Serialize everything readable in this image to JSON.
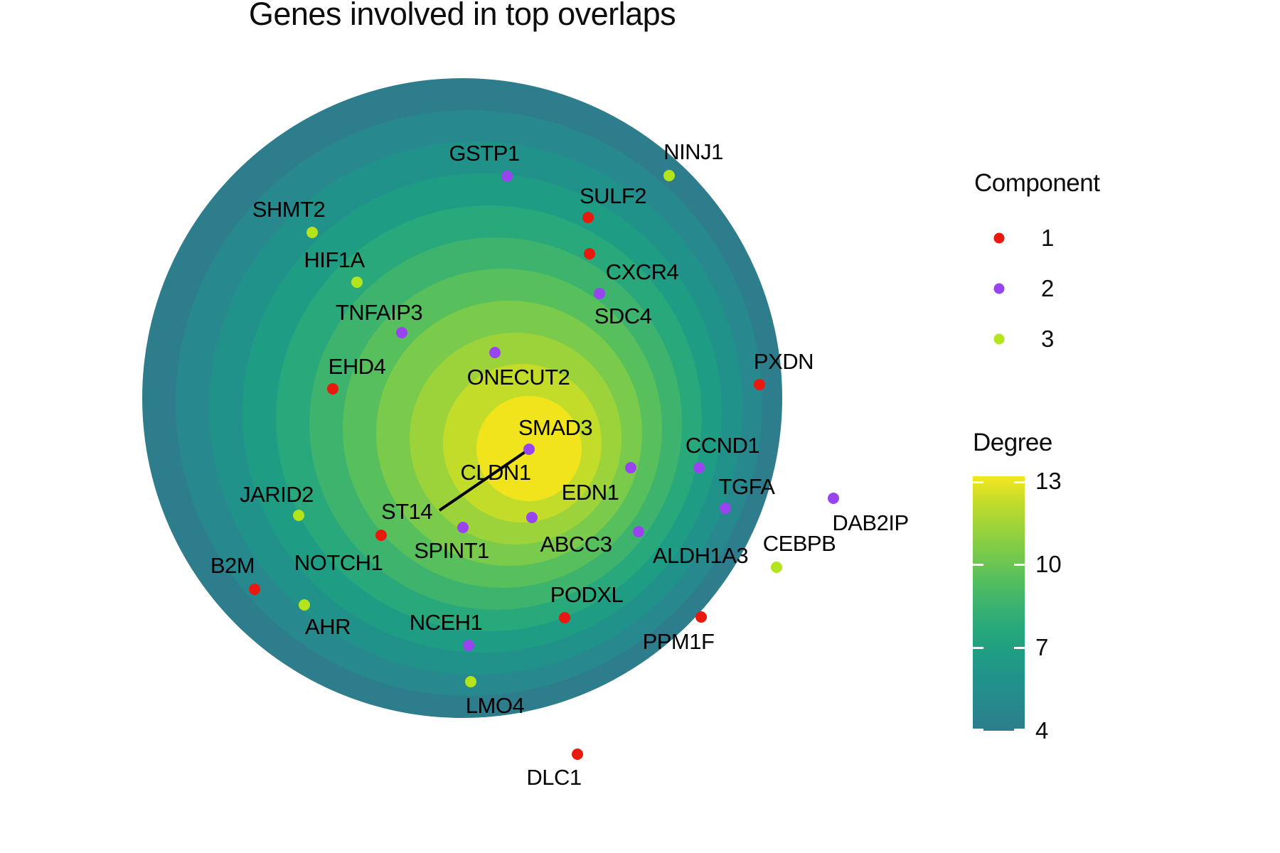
{
  "title": "Genes involved in top overlaps",
  "chart_data": {
    "type": "scatter",
    "subtype": "radial-degree-plot",
    "rings": {
      "count": 11,
      "outer_center": [
        650,
        560
      ],
      "inner_center": [
        744,
        631
      ],
      "outer_radius": 450,
      "inner_radius": 74,
      "colors_outer_to_inner": [
        "#2d7d8d",
        "#27888d",
        "#21928a",
        "#1f9d84",
        "#28a87b",
        "#3db36e",
        "#58bf5d",
        "#7aca4b",
        "#9dd33a",
        "#c3dc2a",
        "#f1e41d"
      ]
    },
    "component_colors": {
      "1": "#e8190f",
      "2": "#9845f0",
      "3": "#b4e41c"
    },
    "connector": {
      "from": [
        744,
        632
      ],
      "to": [
        618,
        718
      ],
      "color": "#000000",
      "width": 4
    },
    "genes": [
      {
        "name": "GSTP1",
        "component": 2,
        "dot": [
          713,
          248
        ],
        "label": [
          681,
          216
        ]
      },
      {
        "name": "NINJ1",
        "component": 3,
        "dot": [
          941,
          247
        ],
        "label": [
          975,
          214
        ]
      },
      {
        "name": "SULF2",
        "component": 1,
        "dot": [
          827,
          306
        ],
        "label": [
          862,
          276
        ]
      },
      {
        "name": "SHMT2",
        "component": 3,
        "dot": [
          439,
          327
        ],
        "label": [
          406,
          295
        ]
      },
      {
        "name": "HIF1A",
        "component": 3,
        "dot": [
          502,
          397
        ],
        "label": [
          470,
          366
        ]
      },
      {
        "name": "CXCR4",
        "component": 1,
        "dot": [
          829,
          357
        ],
        "label": [
          903,
          383
        ]
      },
      {
        "name": "SDC4",
        "component": 2,
        "dot": [
          843,
          413
        ],
        "label": [
          876,
          445
        ]
      },
      {
        "name": "TNFAIP3",
        "component": 2,
        "dot": [
          565,
          468
        ],
        "label": [
          533,
          440
        ]
      },
      {
        "name": "EHD4",
        "component": 1,
        "dot": [
          468,
          547
        ],
        "label": [
          502,
          516
        ]
      },
      {
        "name": "ONECUT2",
        "component": 2,
        "dot": [
          696,
          496
        ],
        "label": [
          729,
          531
        ]
      },
      {
        "name": "PXDN",
        "component": 1,
        "dot": [
          1068,
          541
        ],
        "label": [
          1102,
          509
        ]
      },
      {
        "name": "SMAD3",
        "component": 2,
        "dot": [
          744,
          632
        ],
        "label": [
          781,
          602
        ]
      },
      {
        "name": "CLDN1",
        "component": null,
        "dot": null,
        "label": [
          697,
          665
        ]
      },
      {
        "name": "CCND1",
        "component": 2,
        "dot": [
          983,
          658
        ],
        "label": [
          1016,
          627
        ]
      },
      {
        "name": "EDN1",
        "component": 2,
        "dot": [
          887,
          658
        ],
        "label": [
          830,
          693
        ]
      },
      {
        "name": "TGFA",
        "component": 2,
        "dot": [
          1020,
          715
        ],
        "label": [
          1050,
          685
        ]
      },
      {
        "name": "JARID2",
        "component": 3,
        "dot": [
          420,
          725
        ],
        "label": [
          389,
          696
        ]
      },
      {
        "name": "ST14",
        "component": null,
        "dot": null,
        "label": [
          572,
          720
        ]
      },
      {
        "name": "DAB2IP",
        "component": 2,
        "dot": [
          1172,
          701
        ],
        "label": [
          1224,
          736
        ]
      },
      {
        "name": "ABCC3",
        "component": 2,
        "dot": [
          748,
          728
        ],
        "label": [
          810,
          766
        ]
      },
      {
        "name": "SPINT1",
        "component": 2,
        "dot": [
          651,
          742
        ],
        "label": [
          635,
          775
        ]
      },
      {
        "name": "NOTCH1",
        "component": 1,
        "dot": [
          536,
          753
        ],
        "label": [
          476,
          792
        ]
      },
      {
        "name": "ALDH1A3",
        "component": 2,
        "dot": [
          898,
          748
        ],
        "label": [
          985,
          782
        ]
      },
      {
        "name": "CEBPB",
        "component": 3,
        "dot": [
          1092,
          798
        ],
        "label": [
          1124,
          765
        ]
      },
      {
        "name": "B2M",
        "component": 1,
        "dot": [
          358,
          829
        ],
        "label": [
          327,
          796
        ]
      },
      {
        "name": "PODXL",
        "component": 1,
        "dot": [
          794,
          869
        ],
        "label": [
          825,
          837
        ]
      },
      {
        "name": "AHR",
        "component": 3,
        "dot": [
          428,
          851
        ],
        "label": [
          461,
          882
        ]
      },
      {
        "name": "NCEH1",
        "component": 2,
        "dot": [
          659,
          908
        ],
        "label": [
          627,
          876
        ]
      },
      {
        "name": "PPM1F",
        "component": 1,
        "dot": [
          986,
          868
        ],
        "label": [
          954,
          903
        ]
      },
      {
        "name": "LMO4",
        "component": 3,
        "dot": [
          662,
          959
        ],
        "label": [
          696,
          993
        ]
      },
      {
        "name": "DLC1",
        "component": 1,
        "dot": [
          812,
          1061
        ],
        "label": [
          779,
          1094
        ]
      }
    ]
  },
  "legend_component": {
    "title": "Component",
    "items": [
      {
        "label": "1",
        "color": "#e8190f"
      },
      {
        "label": "2",
        "color": "#9845f0"
      },
      {
        "label": "3",
        "color": "#b4e41c"
      }
    ]
  },
  "legend_degree": {
    "title": "Degree",
    "min": 4,
    "max": 13,
    "ticks": [
      13,
      10,
      7,
      4
    ],
    "gradient_top_to_bottom": [
      "#f4e61e",
      "#c3dc2a",
      "#9dd33a",
      "#7aca4b",
      "#58bf5d",
      "#3db36e",
      "#28a87b",
      "#1f9d84",
      "#21928a",
      "#27888d",
      "#2d7d8d"
    ]
  }
}
